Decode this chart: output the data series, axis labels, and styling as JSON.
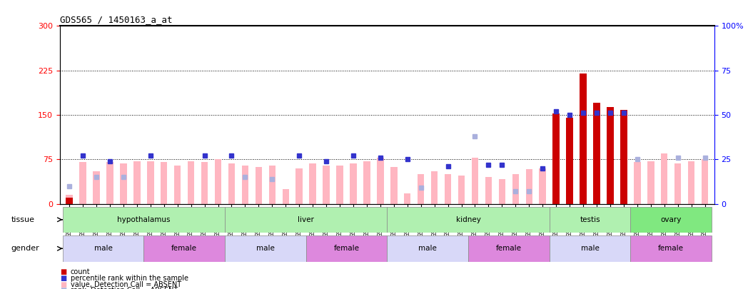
{
  "title": "GDS565 / 1450163_a_at",
  "samples": [
    "GSM19215",
    "GSM19216",
    "GSM19217",
    "GSM19218",
    "GSM19219",
    "GSM19220",
    "GSM19221",
    "GSM19222",
    "GSM19223",
    "GSM19224",
    "GSM19225",
    "GSM19226",
    "GSM19227",
    "GSM19228",
    "GSM19229",
    "GSM19230",
    "GSM19231",
    "GSM19232",
    "GSM19233",
    "GSM19234",
    "GSM19235",
    "GSM19236",
    "GSM19237",
    "GSM19238",
    "GSM19239",
    "GSM19240",
    "GSM19241",
    "GSM19242",
    "GSM19243",
    "GSM19244",
    "GSM19245",
    "GSM19246",
    "GSM19247",
    "GSM19248",
    "GSM19249",
    "GSM19250",
    "GSM19251",
    "GSM19252",
    "GSM19253",
    "GSM19254",
    "GSM19255",
    "GSM19256",
    "GSM19257",
    "GSM19258",
    "GSM19259",
    "GSM19260",
    "GSM19261",
    "GSM19262"
  ],
  "count": [
    10,
    0,
    0,
    0,
    0,
    0,
    0,
    0,
    0,
    0,
    0,
    0,
    0,
    0,
    0,
    0,
    0,
    0,
    0,
    0,
    0,
    0,
    0,
    0,
    0,
    0,
    0,
    0,
    0,
    0,
    0,
    0,
    0,
    0,
    0,
    0,
    152,
    145,
    220,
    170,
    163,
    158,
    0,
    0,
    0,
    0,
    0,
    0
  ],
  "value_absent": [
    15,
    70,
    55,
    70,
    68,
    72,
    72,
    70,
    65,
    72,
    70,
    75,
    68,
    65,
    62,
    65,
    25,
    60,
    68,
    65,
    65,
    68,
    72,
    78,
    62,
    18,
    50,
    55,
    50,
    48,
    78,
    45,
    42,
    50,
    58,
    60,
    0,
    0,
    0,
    0,
    0,
    0,
    70,
    72,
    85,
    68,
    72,
    75
  ],
  "rank_present_pct": [
    0,
    27,
    0,
    24,
    0,
    0,
    27,
    0,
    0,
    0,
    27,
    0,
    27,
    0,
    0,
    0,
    0,
    27,
    0,
    24,
    0,
    27,
    0,
    26,
    0,
    25,
    0,
    0,
    21,
    0,
    0,
    22,
    22,
    0,
    0,
    20,
    52,
    50,
    51,
    51,
    51,
    51,
    0,
    0,
    0,
    0,
    0,
    0
  ],
  "rank_absent_pct": [
    10,
    0,
    15,
    0,
    15,
    0,
    0,
    0,
    0,
    0,
    0,
    0,
    0,
    15,
    0,
    14,
    0,
    0,
    0,
    0,
    0,
    0,
    0,
    0,
    0,
    0,
    9,
    0,
    0,
    0,
    38,
    0,
    0,
    7,
    7,
    0,
    0,
    0,
    0,
    0,
    0,
    0,
    25,
    0,
    0,
    26,
    0,
    26
  ],
  "tissues": [
    {
      "name": "hypothalamus",
      "start": 0,
      "end": 11,
      "color": "#b0f0b0"
    },
    {
      "name": "liver",
      "start": 12,
      "end": 23,
      "color": "#b0f0b0"
    },
    {
      "name": "kidney",
      "start": 24,
      "end": 35,
      "color": "#b0f0b0"
    },
    {
      "name": "testis",
      "start": 36,
      "end": 41,
      "color": "#b0f0b0"
    },
    {
      "name": "ovary",
      "start": 42,
      "end": 47,
      "color": "#80e880"
    }
  ],
  "genders": [
    {
      "name": "male",
      "start": 0,
      "end": 5,
      "color": "#d8d8f8"
    },
    {
      "name": "female",
      "start": 6,
      "end": 11,
      "color": "#dd88dd"
    },
    {
      "name": "male",
      "start": 12,
      "end": 17,
      "color": "#d8d8f8"
    },
    {
      "name": "female",
      "start": 18,
      "end": 23,
      "color": "#dd88dd"
    },
    {
      "name": "male",
      "start": 24,
      "end": 29,
      "color": "#d8d8f8"
    },
    {
      "name": "female",
      "start": 30,
      "end": 35,
      "color": "#dd88dd"
    },
    {
      "name": "male",
      "start": 36,
      "end": 41,
      "color": "#d8d8f8"
    },
    {
      "name": "female",
      "start": 42,
      "end": 47,
      "color": "#dd88dd"
    }
  ],
  "ylim_left": [
    0,
    300
  ],
  "ylim_right": [
    0,
    100
  ],
  "yticks_left": [
    0,
    75,
    150,
    225,
    300
  ],
  "yticks_right": [
    0,
    25,
    50,
    75,
    100
  ],
  "bar_color_count": "#cc0000",
  "bar_color_absent": "#ffb6c1",
  "square_color_rank": "#3333cc",
  "square_color_rank_absent": "#aab0dd",
  "legend_items": [
    {
      "color": "#cc0000",
      "label": "count"
    },
    {
      "color": "#3333cc",
      "label": "percentile rank within the sample"
    },
    {
      "color": "#ffb6c1",
      "label": "value, Detection Call = ABSENT"
    },
    {
      "color": "#aab0dd",
      "label": "rank, Detection Call = ABSENT"
    }
  ]
}
